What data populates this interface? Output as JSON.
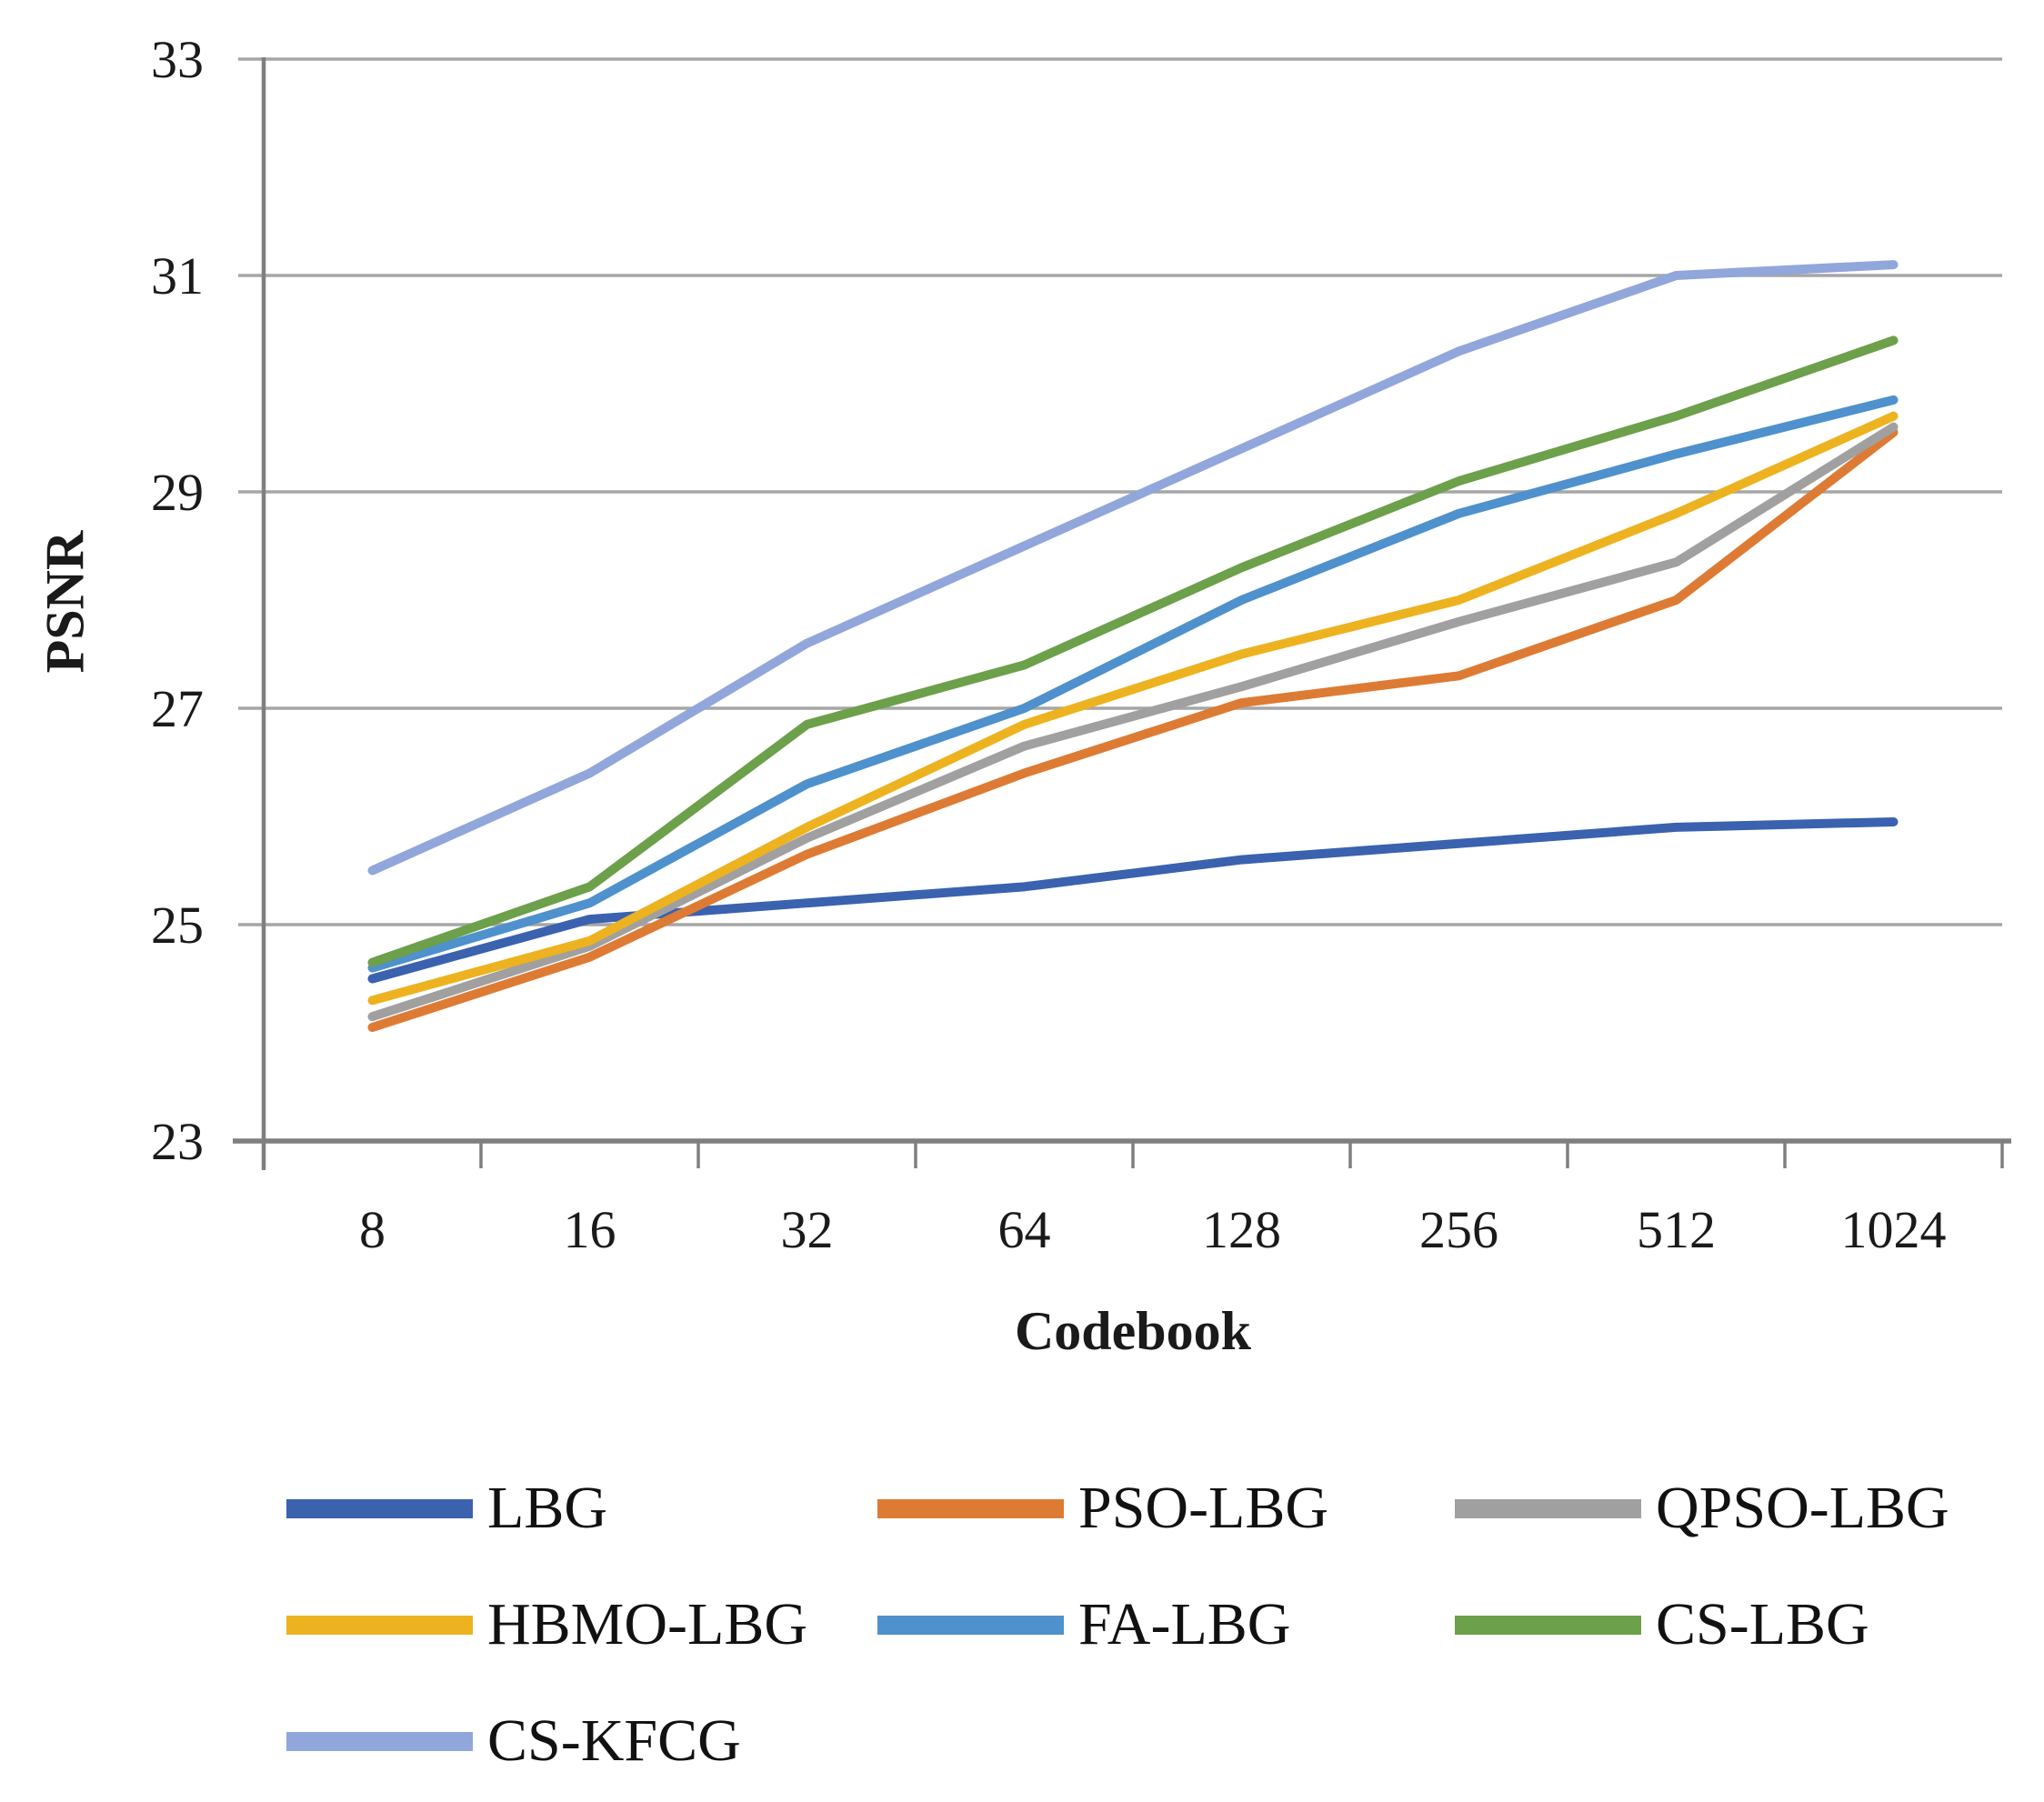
{
  "chart_data": {
    "type": "line",
    "title": "",
    "xlabel": "Codebook",
    "ylabel": "PSNR",
    "categories": [
      "8",
      "16",
      "32",
      "64",
      "128",
      "256",
      "512",
      "1024"
    ],
    "y_ticks": [
      33,
      31,
      29,
      27,
      25,
      23
    ],
    "ylim": [
      23,
      33
    ],
    "grid": "horizontal-only",
    "legend_position": "bottom",
    "axis_color": "#7F7F7F",
    "gridline_color": "#A6A6A6",
    "text_color": "#1A1A1A",
    "series": [
      {
        "name": "LBG",
        "color": "#3A62AE",
        "values": [
          24.5,
          25.05,
          25.2,
          25.35,
          25.6,
          25.75,
          25.9,
          25.95
        ]
      },
      {
        "name": "PSO-LBG",
        "color": "#DD7B34",
        "values": [
          24.05,
          24.7,
          25.65,
          26.4,
          27.05,
          27.3,
          28.0,
          29.55
        ]
      },
      {
        "name": "QPSO-LBG",
        "color": "#A0A0A0",
        "values": [
          24.15,
          24.8,
          25.8,
          26.65,
          27.2,
          27.8,
          28.35,
          29.6
        ]
      },
      {
        "name": "HBMO-LBG",
        "color": "#EDB21F",
        "values": [
          24.3,
          24.85,
          25.9,
          26.85,
          27.5,
          28.0,
          28.8,
          29.7
        ]
      },
      {
        "name": "FA-LBG",
        "color": "#4E91CC",
        "values": [
          24.6,
          25.2,
          26.3,
          27.0,
          28.0,
          28.8,
          29.35,
          29.85
        ]
      },
      {
        "name": "CS-LBG",
        "color": "#6CA04A",
        "values": [
          24.65,
          25.35,
          26.85,
          27.4,
          28.3,
          29.1,
          29.7,
          30.4
        ]
      },
      {
        "name": "CS-KFCG",
        "color": "#91A6DA",
        "values": [
          25.5,
          26.4,
          27.6,
          28.5,
          29.4,
          30.3,
          31.0,
          31.1
        ]
      }
    ]
  }
}
